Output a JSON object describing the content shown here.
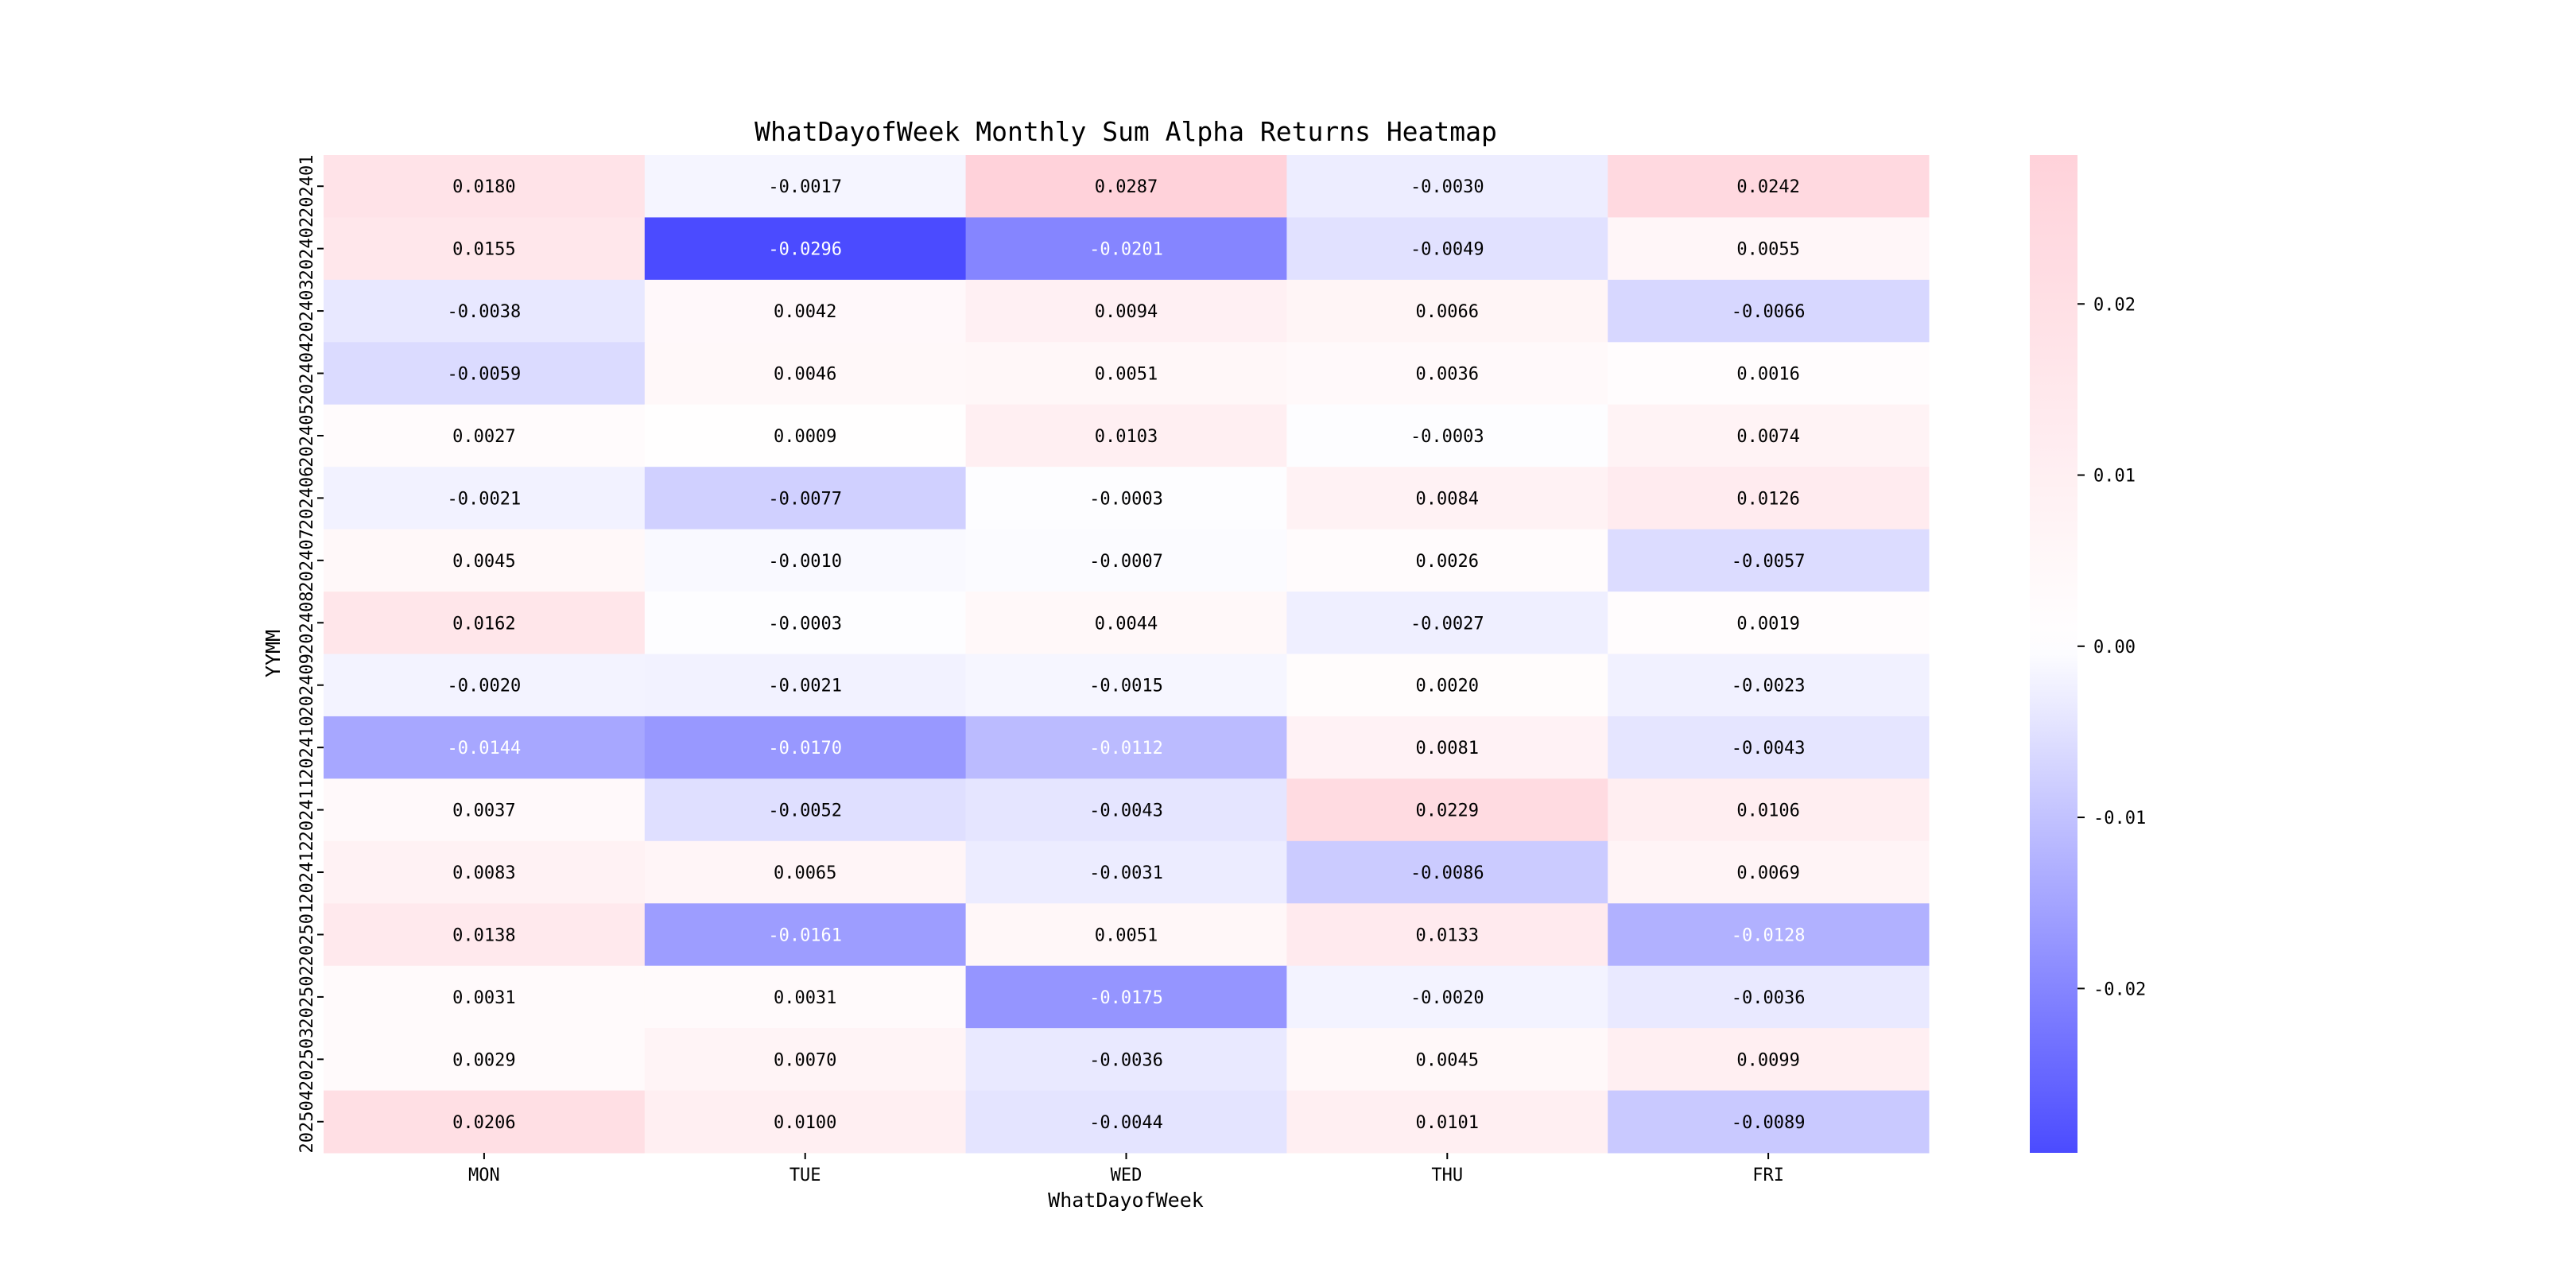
{
  "chart_data": {
    "type": "heatmap",
    "title": "WhatDayofWeek Monthly Sum Alpha Returns Heatmap",
    "xlabel": "WhatDayofWeek",
    "ylabel": "YYMM",
    "x_categories": [
      "MON",
      "TUE",
      "WED",
      "THU",
      "FRI"
    ],
    "y_categories": [
      "202401",
      "202402",
      "202403",
      "202404",
      "202405",
      "202406",
      "202407",
      "202408",
      "202409",
      "202410",
      "202411",
      "202412",
      "202501",
      "202502",
      "202503",
      "202504"
    ],
    "values": [
      [
        "0.0180",
        "-0.0017",
        "0.0287",
        "-0.0030",
        "0.0242"
      ],
      [
        "0.0155",
        "-0.0296",
        "-0.0201",
        "-0.0049",
        "0.0055"
      ],
      [
        "-0.0038",
        "0.0042",
        "0.0094",
        "0.0066",
        "-0.0066"
      ],
      [
        "-0.0059",
        "0.0046",
        "0.0051",
        "0.0036",
        "0.0016"
      ],
      [
        "0.0027",
        "0.0009",
        "0.0103",
        "-0.0003",
        "0.0074"
      ],
      [
        "-0.0021",
        "-0.0077",
        "-0.0003",
        "0.0084",
        "0.0126"
      ],
      [
        "0.0045",
        "-0.0010",
        "-0.0007",
        "0.0026",
        "-0.0057"
      ],
      [
        "0.0162",
        "-0.0003",
        "0.0044",
        "-0.0027",
        "0.0019"
      ],
      [
        "-0.0020",
        "-0.0021",
        "-0.0015",
        "0.0020",
        "-0.0023"
      ],
      [
        "-0.0144",
        "-0.0170",
        "-0.0112",
        "0.0081",
        "-0.0043"
      ],
      [
        "0.0037",
        "-0.0052",
        "-0.0043",
        "0.0229",
        "0.0106"
      ],
      [
        "0.0083",
        "0.0065",
        "-0.0031",
        "-0.0086",
        "0.0069"
      ],
      [
        "0.0138",
        "-0.0161",
        "0.0051",
        "0.0133",
        "-0.0128"
      ],
      [
        "0.0031",
        "0.0031",
        "-0.0175",
        "-0.0020",
        "-0.0036"
      ],
      [
        "0.0029",
        "0.0070",
        "-0.0036",
        "0.0045",
        "0.0099"
      ],
      [
        "0.0206",
        "0.0100",
        "-0.0044",
        "0.0101",
        "-0.0089"
      ]
    ],
    "colorbar": {
      "vmin": -0.0296,
      "vmax": 0.0287,
      "ticks": [
        "0.02",
        "0.01",
        "0.00",
        "-0.01",
        "-0.02"
      ],
      "tick_values": [
        0.02,
        0.01,
        0.0,
        -0.01,
        -0.02
      ],
      "colors": {
        "negative": "#4b4bff",
        "zero": "#ffffff",
        "positive": "#ffd2da"
      }
    },
    "grid": false,
    "legend": "right"
  }
}
